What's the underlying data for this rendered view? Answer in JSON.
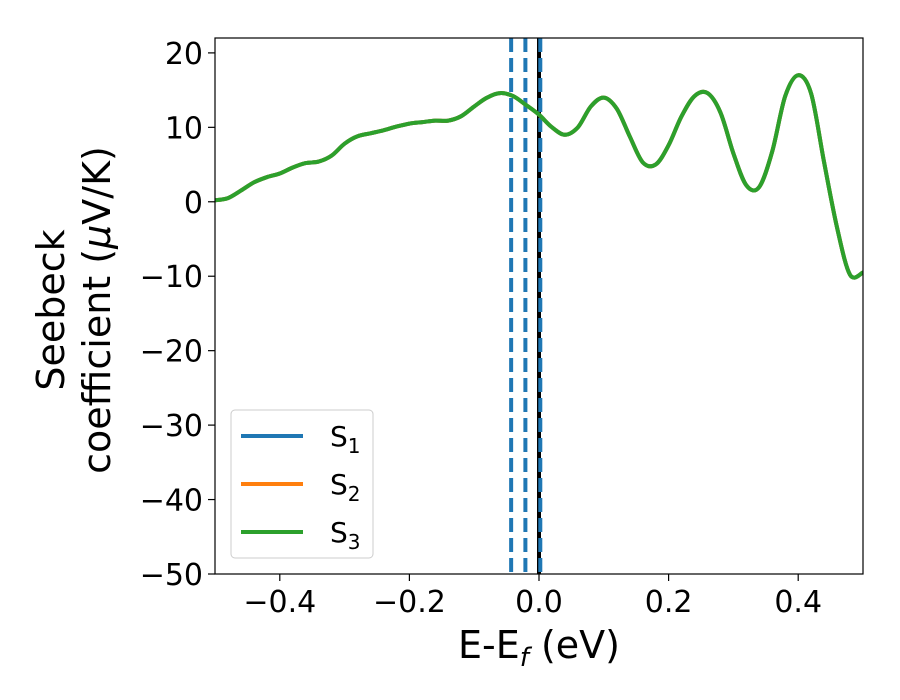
{
  "chart_data": {
    "type": "line",
    "title": "",
    "xlabel": {
      "main": "E-E",
      "sub": "f",
      "unit": " (eV)"
    },
    "ylabel": {
      "line1": "Seebeck",
      "line2": "coefficient  (",
      "mu": "μ",
      "unit": "V/K)"
    },
    "xlim": [
      -0.5,
      0.5
    ],
    "ylim": [
      -50,
      22
    ],
    "x_ticks": [
      -0.4,
      -0.2,
      0.0,
      0.2,
      0.4
    ],
    "x_tick_labels": [
      "−0.4",
      "−0.2",
      "0.0",
      "0.2",
      "0.4"
    ],
    "y_ticks": [
      20,
      10,
      0,
      -10,
      -20,
      -30,
      -40,
      -50
    ],
    "y_tick_labels": [
      "20",
      "10",
      "0",
      "−10",
      "−20",
      "−30",
      "−40",
      "−50"
    ],
    "grid": false,
    "legend_position": "lower-left",
    "series": [
      {
        "name": "S",
        "sub": "1",
        "color": "#1f77b4",
        "x": [
          -0.5,
          -0.48,
          -0.46,
          -0.44,
          -0.42,
          -0.4,
          -0.38,
          -0.36,
          -0.34,
          -0.32,
          -0.3,
          -0.28,
          -0.26,
          -0.24,
          -0.22,
          -0.2,
          -0.18,
          -0.16,
          -0.14,
          -0.12,
          -0.1,
          -0.08,
          -0.06,
          -0.04,
          -0.02,
          0.0,
          0.02,
          0.04,
          0.06,
          0.08,
          0.1,
          0.12,
          0.14,
          0.16,
          0.18,
          0.2,
          0.22,
          0.24,
          0.26,
          0.28,
          0.3,
          0.32,
          0.34,
          0.36,
          0.38,
          0.4,
          0.42,
          0.44,
          0.46,
          0.48,
          0.5
        ],
        "y": [
          0.2,
          0.5,
          1.5,
          2.6,
          3.3,
          3.8,
          4.6,
          5.2,
          5.4,
          6.2,
          7.8,
          8.8,
          9.2,
          9.6,
          10.1,
          10.5,
          10.7,
          10.9,
          10.9,
          11.5,
          12.8,
          14.0,
          14.6,
          14.2,
          13.0,
          11.7,
          10.0,
          9.0,
          10.0,
          12.8,
          14.0,
          12.5,
          8.8,
          5.3,
          5.0,
          7.6,
          11.5,
          14.2,
          14.6,
          12.0,
          6.5,
          2.2,
          2.0,
          6.8,
          14.2,
          17.0,
          14.5,
          5.3,
          -3.5,
          -9.8,
          -9.5
        ]
      },
      {
        "name": "S",
        "sub": "2",
        "color": "#ff7f0e",
        "x": [
          -0.5,
          -0.48,
          -0.46,
          -0.44,
          -0.42,
          -0.4,
          -0.38,
          -0.36,
          -0.34,
          -0.32,
          -0.3,
          -0.28,
          -0.26,
          -0.24,
          -0.22,
          -0.2,
          -0.18,
          -0.16,
          -0.14,
          -0.12,
          -0.1,
          -0.08,
          -0.06,
          -0.04,
          -0.02,
          0.0,
          0.02,
          0.04,
          0.06,
          0.08,
          0.1,
          0.12,
          0.14,
          0.16,
          0.18,
          0.2,
          0.22,
          0.24,
          0.26,
          0.28,
          0.3,
          0.32,
          0.34,
          0.36,
          0.38,
          0.4,
          0.42,
          0.44,
          0.46,
          0.48,
          0.5
        ],
        "y": [
          0.2,
          0.5,
          1.5,
          2.6,
          3.3,
          3.8,
          4.6,
          5.2,
          5.4,
          6.2,
          7.8,
          8.8,
          9.2,
          9.6,
          10.1,
          10.5,
          10.7,
          10.9,
          10.9,
          11.5,
          12.8,
          14.0,
          14.6,
          14.2,
          13.0,
          11.7,
          10.0,
          9.0,
          10.0,
          12.8,
          14.0,
          12.5,
          8.8,
          5.3,
          5.0,
          7.6,
          11.5,
          14.2,
          14.6,
          12.0,
          6.5,
          2.2,
          2.0,
          6.8,
          14.2,
          17.0,
          14.5,
          5.3,
          -3.5,
          -9.8,
          -9.5
        ]
      },
      {
        "name": "S",
        "sub": "3",
        "color": "#2ca02c",
        "x": [
          -0.5,
          -0.48,
          -0.46,
          -0.44,
          -0.42,
          -0.4,
          -0.38,
          -0.36,
          -0.34,
          -0.32,
          -0.3,
          -0.28,
          -0.26,
          -0.24,
          -0.22,
          -0.2,
          -0.18,
          -0.16,
          -0.14,
          -0.12,
          -0.1,
          -0.08,
          -0.06,
          -0.04,
          -0.02,
          0.0,
          0.02,
          0.04,
          0.06,
          0.08,
          0.1,
          0.12,
          0.14,
          0.16,
          0.18,
          0.2,
          0.22,
          0.24,
          0.26,
          0.28,
          0.3,
          0.32,
          0.34,
          0.36,
          0.38,
          0.4,
          0.42,
          0.44,
          0.46,
          0.48,
          0.5
        ],
        "y": [
          0.2,
          0.5,
          1.5,
          2.6,
          3.3,
          3.8,
          4.6,
          5.2,
          5.4,
          6.2,
          7.8,
          8.8,
          9.2,
          9.6,
          10.1,
          10.5,
          10.7,
          10.9,
          10.9,
          11.5,
          12.8,
          14.0,
          14.6,
          14.2,
          13.0,
          11.7,
          10.0,
          9.0,
          10.0,
          12.8,
          14.0,
          12.5,
          8.8,
          5.3,
          5.0,
          7.6,
          11.5,
          14.2,
          14.6,
          12.0,
          6.5,
          2.2,
          2.0,
          6.8,
          14.2,
          17.0,
          14.5,
          5.3,
          -3.5,
          -9.8,
          -9.5
        ]
      }
    ],
    "vertical_lines": [
      {
        "x": -0.043,
        "style": "dashed",
        "color": "#1f77b4"
      },
      {
        "x": -0.021,
        "style": "dashed",
        "color": "#1f77b4"
      },
      {
        "x": 0.0,
        "style": "solid",
        "color": "#000000"
      },
      {
        "x": 0.002,
        "style": "dashed",
        "color": "#1f77b4"
      }
    ]
  }
}
